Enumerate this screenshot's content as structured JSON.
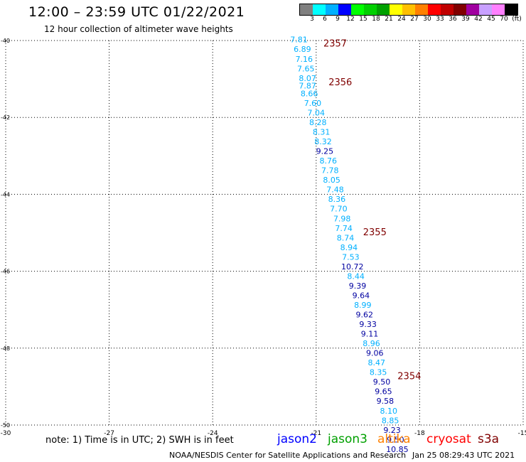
{
  "header": {
    "title": "12:00 – 23:59 UTC 01/22/2021",
    "subtitle": "12 hour collection of altimeter wave heights"
  },
  "colorbar": {
    "colors": [
      "#808080",
      "#00ffff",
      "#00b0ff",
      "#0000ff",
      "#00ff00",
      "#00d000",
      "#00a000",
      "#ffff00",
      "#ffc000",
      "#ff8000",
      "#ff0000",
      "#c00000",
      "#800000",
      "#a000a0",
      "#c8a0ff",
      "#ff80ff",
      "#000000"
    ],
    "labels": [
      "3",
      "6",
      "9",
      "12",
      "15",
      "18",
      "21",
      "24",
      "27",
      "30",
      "33",
      "36",
      "39",
      "42",
      "45",
      "70",
      "(ft)"
    ]
  },
  "axes": {
    "lat_labels": [
      "-40",
      "-42",
      "-44",
      "-46",
      "-48",
      "-50"
    ],
    "lon_labels": [
      "-30",
      "-27",
      "-24",
      "-21",
      "-18",
      "-15"
    ],
    "lat_range": [
      -50,
      -40
    ],
    "lon_range": [
      -30,
      -15
    ],
    "grid": "dotted"
  },
  "chart_data": {
    "type": "scatter",
    "x_unit": "degrees longitude",
    "y_unit": "degrees latitude",
    "points": [
      {
        "label": "7.81",
        "lon": -21.5,
        "lat": -40.05,
        "color": "#00b0ff"
      },
      {
        "label": "6.89",
        "lon": -21.4,
        "lat": -40.3,
        "color": "#00b0ff"
      },
      {
        "label": "7.16",
        "lon": -21.35,
        "lat": -40.55,
        "color": "#00b0ff"
      },
      {
        "label": "7.65",
        "lon": -21.3,
        "lat": -40.8,
        "color": "#00b0ff"
      },
      {
        "label": "8.07",
        "lon": -21.25,
        "lat": -41.05,
        "color": "#00b0ff"
      },
      {
        "label": "7.87",
        "lon": -21.25,
        "lat": -41.25,
        "color": "#00b0ff"
      },
      {
        "label": "8.66",
        "lon": -21.2,
        "lat": -41.45,
        "color": "#00b0ff"
      },
      {
        "label": "7.60",
        "lon": -21.1,
        "lat": -41.7,
        "color": "#00b0ff"
      },
      {
        "label": "7.04",
        "lon": -21.0,
        "lat": -41.95,
        "color": "#00b0ff"
      },
      {
        "label": "8.28",
        "lon": -20.95,
        "lat": -42.2,
        "color": "#00b0ff"
      },
      {
        "label": "8.31",
        "lon": -20.85,
        "lat": -42.45,
        "color": "#00b0ff"
      },
      {
        "label": "8.32",
        "lon": -20.8,
        "lat": -42.7,
        "color": "#00b0ff"
      },
      {
        "label": "9.25",
        "lon": -20.75,
        "lat": -42.95,
        "color": "#0000a0"
      },
      {
        "label": "8.76",
        "lon": -20.65,
        "lat": -43.2,
        "color": "#00b0ff"
      },
      {
        "label": "7.78",
        "lon": -20.6,
        "lat": -43.45,
        "color": "#00b0ff"
      },
      {
        "label": "8.05",
        "lon": -20.55,
        "lat": -43.7,
        "color": "#00b0ff"
      },
      {
        "label": "7.48",
        "lon": -20.45,
        "lat": -43.95,
        "color": "#00b0ff"
      },
      {
        "label": "8.36",
        "lon": -20.4,
        "lat": -44.2,
        "color": "#00b0ff"
      },
      {
        "label": "7.70",
        "lon": -20.35,
        "lat": -44.45,
        "color": "#00b0ff"
      },
      {
        "label": "7.98",
        "lon": -20.25,
        "lat": -44.7,
        "color": "#00b0ff"
      },
      {
        "label": "7.74",
        "lon": -20.2,
        "lat": -44.95,
        "color": "#00b0ff"
      },
      {
        "label": "8.74",
        "lon": -20.15,
        "lat": -45.2,
        "color": "#00b0ff"
      },
      {
        "label": "8.94",
        "lon": -20.05,
        "lat": -45.45,
        "color": "#00b0ff"
      },
      {
        "label": "7.53",
        "lon": -20.0,
        "lat": -45.7,
        "color": "#00b0ff"
      },
      {
        "label": "10.72",
        "lon": -19.95,
        "lat": -45.95,
        "color": "#0000a0"
      },
      {
        "label": "8.44",
        "lon": -19.85,
        "lat": -46.2,
        "color": "#00b0ff"
      },
      {
        "label": "9.39",
        "lon": -19.8,
        "lat": -46.45,
        "color": "#0000a0"
      },
      {
        "label": "9.64",
        "lon": -19.7,
        "lat": -46.7,
        "color": "#0000a0"
      },
      {
        "label": "8.99",
        "lon": -19.65,
        "lat": -46.95,
        "color": "#00b0ff"
      },
      {
        "label": "9.62",
        "lon": -19.6,
        "lat": -47.2,
        "color": "#0000a0"
      },
      {
        "label": "9.33",
        "lon": -19.5,
        "lat": -47.45,
        "color": "#0000a0"
      },
      {
        "label": "9.11",
        "lon": -19.45,
        "lat": -47.7,
        "color": "#0000a0"
      },
      {
        "label": "8.96",
        "lon": -19.4,
        "lat": -47.95,
        "color": "#00b0ff"
      },
      {
        "label": "9.06",
        "lon": -19.3,
        "lat": -48.2,
        "color": "#0000a0"
      },
      {
        "label": "8.47",
        "lon": -19.25,
        "lat": -48.45,
        "color": "#00b0ff"
      },
      {
        "label": "8.35",
        "lon": -19.2,
        "lat": -48.7,
        "color": "#00b0ff"
      },
      {
        "label": "9.50",
        "lon": -19.1,
        "lat": -48.95,
        "color": "#0000a0"
      },
      {
        "label": "9.65",
        "lon": -19.05,
        "lat": -49.2,
        "color": "#0000a0"
      },
      {
        "label": "9.58",
        "lon": -19.0,
        "lat": -49.45,
        "color": "#0000a0"
      },
      {
        "label": "8.10",
        "lon": -18.9,
        "lat": -49.7,
        "color": "#00b0ff"
      },
      {
        "label": "8.85",
        "lon": -18.85,
        "lat": -49.95,
        "color": "#00b0ff"
      },
      {
        "label": "9.23",
        "lon": -18.8,
        "lat": -50.2,
        "color": "#0000a0"
      },
      {
        "label": "9.50",
        "lon": -18.7,
        "lat": -50.45,
        "color": "#0000a0"
      },
      {
        "label": "10.85",
        "lon": -18.65,
        "lat": -50.7,
        "color": "#0000a0"
      }
    ],
    "pass_labels": [
      {
        "label": "2357",
        "lon": -20.45,
        "lat": -40.05
      },
      {
        "label": "2356",
        "lon": -20.3,
        "lat": -41.05
      },
      {
        "label": "2355",
        "lon": -19.3,
        "lat": -44.95
      },
      {
        "label": "2354",
        "lon": -18.3,
        "lat": -48.7
      }
    ]
  },
  "note": "note:  1) Time is in UTC;  2) SWH is in feet",
  "satellites": [
    {
      "name": "jason2",
      "color": "#0000ff"
    },
    {
      "name": "jason3",
      "color": "#00a000"
    },
    {
      "name": "altika",
      "color": "#ff8000"
    },
    {
      "name": "cryosat",
      "color": "#ff0000"
    },
    {
      "name": "s3a",
      "color": "#800000"
    }
  ],
  "footer": {
    "credit": "NOAA/NESDIS Center for Satellite Applications and Research",
    "date": "Jan 25 08:29:43 UTC 2021"
  }
}
